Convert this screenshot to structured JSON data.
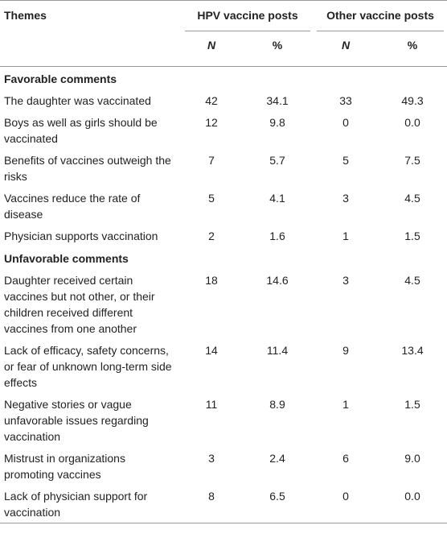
{
  "table": {
    "columns": [
      "Themes",
      "HPV vaccine posts",
      "Other vaccine posts"
    ],
    "subcolumns": [
      "N",
      "%",
      "N",
      "%"
    ],
    "sections": [
      {
        "title": "Favorable comments",
        "rows": [
          [
            "The daughter was vaccinated",
            "42",
            "34.1",
            "33",
            "49.3"
          ],
          [
            "Boys as well as girls should be vaccinated",
            "12",
            "9.8",
            "0",
            "0.0"
          ],
          [
            "Benefits of vaccines outweigh the risks",
            "7",
            "5.7",
            "5",
            "7.5"
          ],
          [
            "Vaccines reduce the rate of disease",
            "5",
            "4.1",
            "3",
            "4.5"
          ],
          [
            "Physician supports vaccination",
            "2",
            "1.6",
            "1",
            "1.5"
          ]
        ]
      },
      {
        "title": "Unfavorable comments",
        "rows": [
          [
            "Daughter received certain vaccines but not other, or their children received different vaccines from one another",
            "18",
            "14.6",
            "3",
            "4.5"
          ],
          [
            "Lack of efficacy, safety concerns, or fear of unknown long-term side effects",
            "14",
            "11.4",
            "9",
            "13.4"
          ],
          [
            "Negative stories or vague unfavorable issues regarding vaccination",
            "11",
            "8.9",
            "1",
            "1.5"
          ],
          [
            "Mistrust in organizations promoting vaccines",
            "3",
            "2.4",
            "6",
            "9.0"
          ],
          [
            "Lack of physician support for vaccination",
            "8",
            "6.5",
            "0",
            "0.0"
          ]
        ]
      }
    ]
  }
}
